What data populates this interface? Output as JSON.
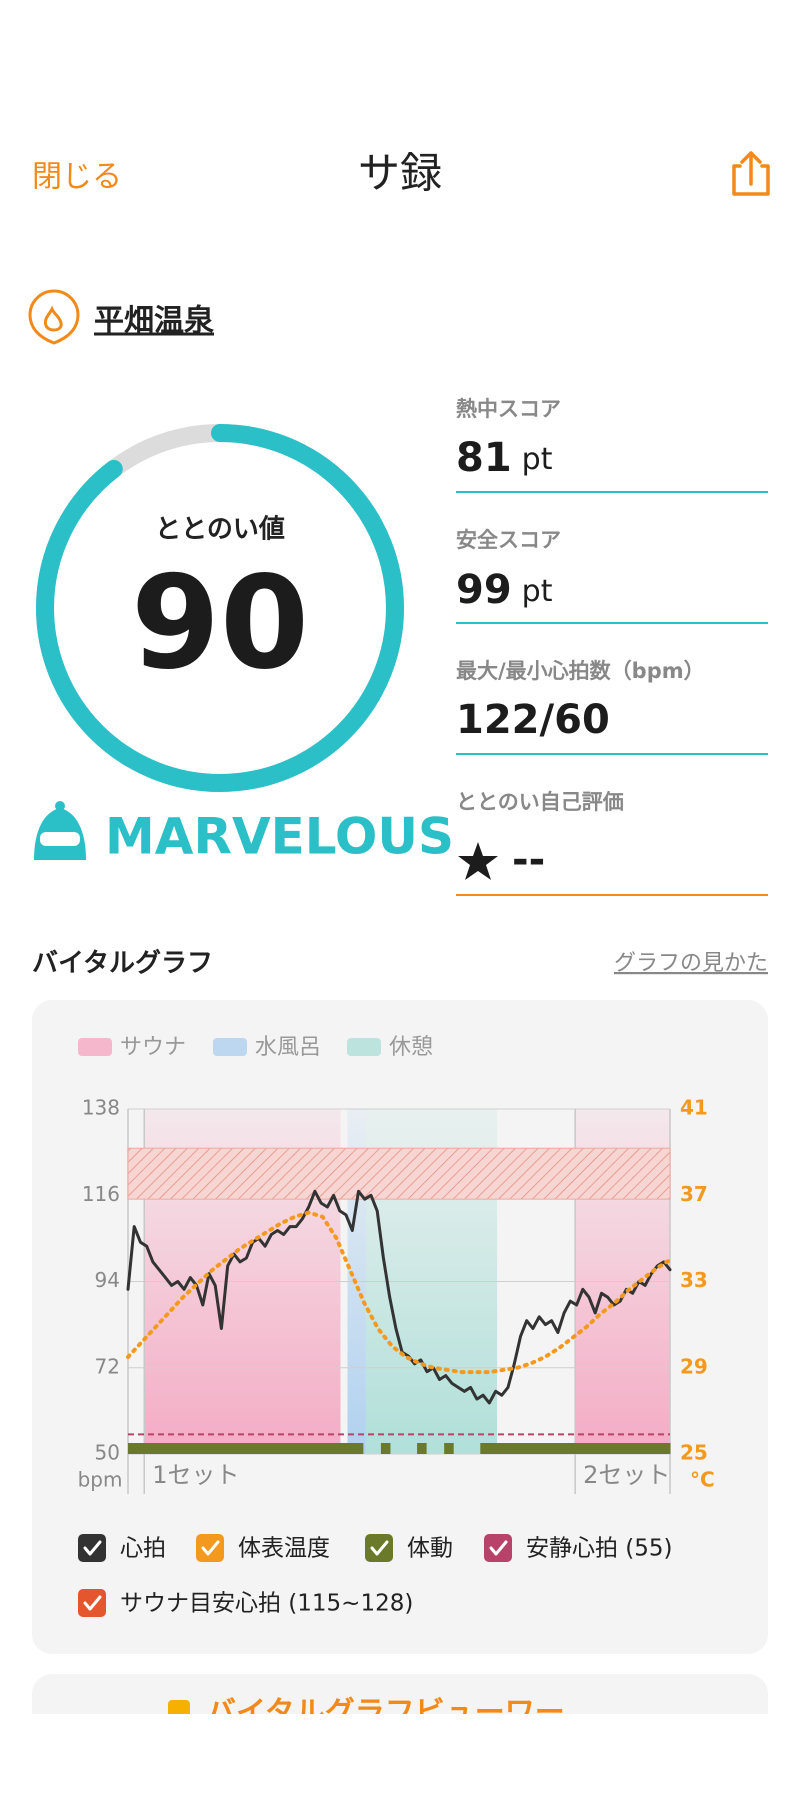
{
  "header": {
    "close": "閉じる",
    "title": "サ録"
  },
  "facility": "平畑温泉",
  "score": {
    "label": "ととのい値",
    "value": 90,
    "rank": "MARVELOUS"
  },
  "stats": [
    {
      "label": "熱中スコア",
      "value": 81,
      "unit": "pt"
    },
    {
      "label": "安全スコア",
      "value": 99,
      "unit": "pt"
    },
    {
      "label": "最大/最小心拍数（bpm）",
      "value": "122/60"
    },
    {
      "label": "ととのい自己評価",
      "value": "--"
    }
  ],
  "graph_section": {
    "title": "バイタルグラフ",
    "link": "グラフの見かた"
  },
  "chart_data": {
    "type": "line",
    "phases": [
      {
        "name": "サウナ",
        "color": "#f4a3bf"
      },
      {
        "name": "水風呂",
        "color": "#a9cdee"
      },
      {
        "name": "休憩",
        "color": "#a9ddd6"
      }
    ],
    "ylim": [
      50,
      138
    ],
    "yticks": [
      50,
      72,
      94,
      116,
      138
    ],
    "y2lim": [
      25,
      41
    ],
    "y2ticks": [
      25,
      29,
      33,
      37,
      41
    ],
    "ylabel": "bpm",
    "y2label": "°C",
    "set_labels": [
      "1セット",
      "2セット"
    ],
    "series": [
      {
        "name": "心拍",
        "color": "#333333",
        "values": [
          92,
          108,
          104,
          103,
          99,
          97,
          95,
          93,
          94,
          92,
          95,
          93,
          88,
          96,
          93,
          82,
          98,
          101,
          99,
          100,
          104,
          105,
          103,
          106,
          107,
          106,
          108,
          108,
          110,
          113,
          117,
          114,
          113,
          116,
          112,
          111,
          107,
          117,
          115,
          116,
          112,
          100,
          90,
          82,
          76,
          75,
          73,
          74,
          71,
          72,
          69,
          70,
          68,
          67,
          66,
          67,
          64,
          65,
          63,
          66,
          65,
          67,
          73,
          80,
          84,
          82,
          85,
          83,
          84,
          81,
          86,
          89,
          88,
          92,
          90,
          86,
          91,
          90,
          88,
          89,
          92,
          91,
          94,
          93,
          96,
          98,
          99,
          97
        ]
      },
      {
        "name": "体表温度",
        "color": "#f39a1e",
        "axis": "y2",
        "values": [
          29.5,
          30.2,
          30.9,
          31.6,
          32.3,
          32.9,
          33.5,
          34.0,
          34.5,
          34.9,
          35.3,
          35.7,
          36.0,
          36.2,
          36.0,
          35.0,
          33.5,
          32.0,
          30.8,
          30.0,
          29.5,
          29.2,
          29.0,
          28.9,
          28.8,
          28.8,
          28.8,
          28.9,
          29.0,
          29.2,
          29.5,
          29.9,
          30.4,
          30.9,
          31.5,
          32.0,
          32.6,
          33.1,
          33.6,
          34.0
        ]
      },
      {
        "name": "体動",
        "color": "#6b7a2a",
        "values": [
          1,
          1,
          1,
          1,
          1,
          1,
          1,
          1,
          1,
          1,
          1,
          1,
          1,
          1,
          1,
          1,
          1,
          1,
          1,
          1,
          1,
          1,
          1,
          1,
          1,
          1,
          0,
          0,
          1,
          0,
          0,
          0,
          1,
          0,
          0,
          1,
          0,
          0,
          0,
          1,
          1,
          1,
          1,
          1,
          1,
          1,
          1,
          1,
          1,
          1,
          1,
          1,
          1,
          1,
          1,
          1,
          1,
          1,
          1,
          1
        ]
      }
    ],
    "resting_hr": {
      "name": "安静心拍 (55)",
      "value": 55,
      "color": "#b8436a"
    },
    "target_hr": {
      "name": "サウナ目安心拍 (115~128)",
      "range": [
        115,
        128
      ],
      "color": "#e4572e"
    }
  },
  "viewer_button": "バイタルグラフビューワー"
}
